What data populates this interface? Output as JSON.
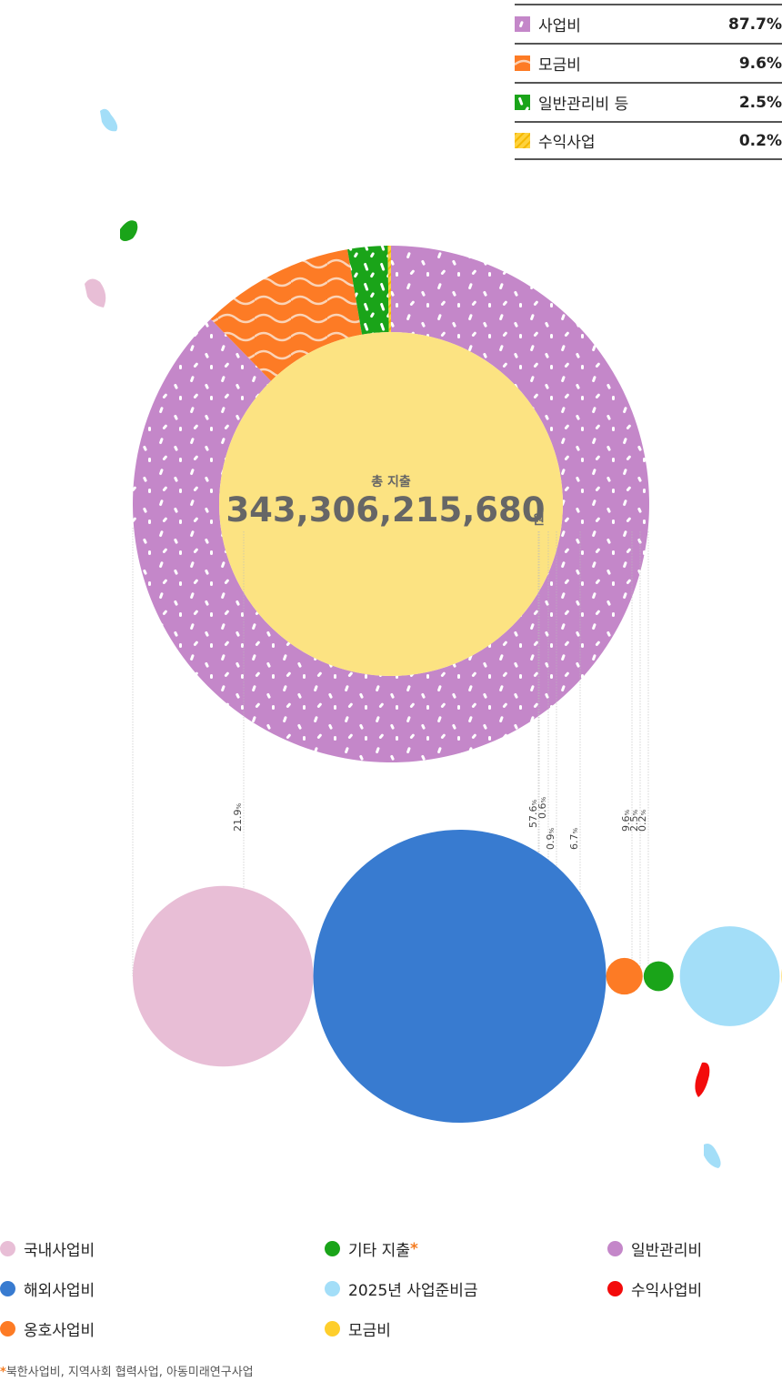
{
  "chart_data": [
    {
      "type": "pie",
      "center_title": "총 지출",
      "center_value": "343,306,215,680",
      "center_unit": "원",
      "slices": [
        {
          "label": "사업비",
          "value": 87.7,
          "value_label": "87.7%",
          "color": "#c487c9"
        },
        {
          "label": "모금비",
          "value": 9.6,
          "value_label": "9.6%",
          "color": "#fd7b25"
        },
        {
          "label": "일반관리비 등",
          "value": 2.5,
          "value_label": "2.5%",
          "color": "#1aa419"
        },
        {
          "label": "수익사업",
          "value": 0.2,
          "value_label": "0.2%",
          "color": "#fed23d"
        }
      ]
    },
    {
      "type": "bubble",
      "bubbles": [
        {
          "label": "국내사업비",
          "value": 21.9,
          "value_text": "21.9",
          "unit": "%",
          "color": "#e8bed6"
        },
        {
          "label": "해외사업비",
          "value": 57.6,
          "value_text": "57.6",
          "unit": "%",
          "color": "#387bd0"
        },
        {
          "label": "옹호사업비",
          "value": 0.9,
          "value_text": "0.9",
          "unit": "%",
          "color": "#fd7b25"
        },
        {
          "label": "기타 지출",
          "value": 0.6,
          "value_text": "0.6",
          "unit": "%",
          "color": "#1aa419"
        },
        {
          "label": "2025년 사업준비금",
          "value": 6.7,
          "value_text": "6.7",
          "unit": "%",
          "color": "#a3def8"
        },
        {
          "label": "모금비",
          "value": 9.6,
          "value_text": "9.6",
          "unit": "%",
          "color": "#fece2c"
        },
        {
          "label": "일반관리비",
          "value": 2.5,
          "value_text": "2.5",
          "unit": "%",
          "color": "#c487c9"
        },
        {
          "label": "수익사업비",
          "value": 0.2,
          "value_text": "0.2",
          "unit": "%",
          "color": "#f30b0b"
        }
      ]
    }
  ],
  "bottom_legend": {
    "items": [
      {
        "label": "국내사업비",
        "color": "#e8bed6"
      },
      {
        "label": "해외사업비",
        "color": "#387bd0"
      },
      {
        "label": "옹호사업비",
        "color": "#fd7b25"
      },
      {
        "label": "기타 지출",
        "color": "#1aa419",
        "star": "*"
      },
      {
        "label": "2025년 사업준비금",
        "color": "#a3def8"
      },
      {
        "label": "모금비",
        "color": "#fece2c"
      },
      {
        "label": "일반관리비",
        "color": "#c487c9"
      },
      {
        "label": "수익사업비",
        "color": "#f30b0b"
      }
    ]
  },
  "footnote": {
    "star": "*",
    "text": "북한사업비, 지역사회 협력사업, 아동미래연구사업"
  },
  "decorations": [
    "light-blue-blob",
    "green-blob",
    "pink-blob",
    "red-blob",
    "light-blue-blob"
  ]
}
